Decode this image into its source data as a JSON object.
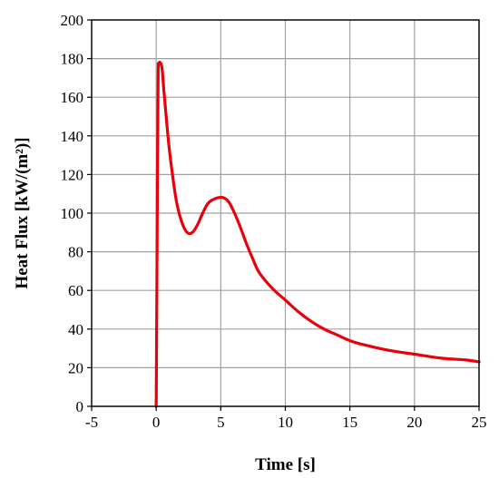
{
  "chart_data": {
    "type": "line",
    "title": "",
    "xlabel": "Time [s]",
    "ylabel": "Heat Flux [kW/(m²)]",
    "xlim": [
      -5,
      25
    ],
    "ylim": [
      0,
      200
    ],
    "xticks": [
      -5,
      0,
      5,
      10,
      15,
      20,
      25
    ],
    "yticks": [
      0,
      20,
      40,
      60,
      80,
      100,
      120,
      140,
      160,
      180,
      200
    ],
    "grid": true,
    "legend": "none",
    "series": [
      {
        "color": "#e8000b",
        "x": [
          0.0,
          0.05,
          0.1,
          0.15,
          0.2,
          0.3,
          0.45,
          0.6,
          0.8,
          1.0,
          1.3,
          1.6,
          2.0,
          2.4,
          2.8,
          3.2,
          3.6,
          4.0,
          4.4,
          4.8,
          5.2,
          5.6,
          6.0,
          6.5,
          7.0,
          7.5,
          8.0,
          9.0,
          10.0,
          11.0,
          12.0,
          13.0,
          14.0,
          15.0,
          16.0,
          18.0,
          20.0,
          22.0,
          24.0,
          25.0
        ],
        "y": [
          0,
          60,
          125,
          172,
          177,
          178,
          175,
          163,
          148,
          134,
          118,
          105,
          95,
          90,
          90,
          94,
          100,
          105,
          107,
          108,
          108,
          106,
          101,
          93,
          84,
          76,
          69,
          61,
          55,
          49,
          44,
          40,
          37,
          34,
          32,
          29,
          27,
          25,
          24,
          23
        ]
      }
    ]
  }
}
